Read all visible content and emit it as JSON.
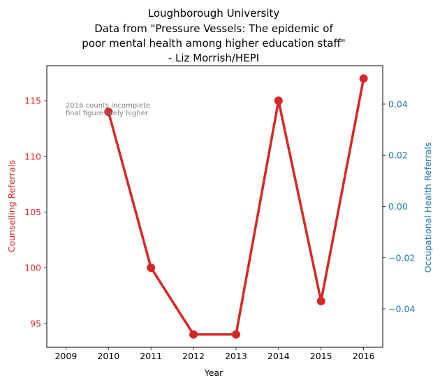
{
  "chart_data": {
    "type": "line",
    "title_lines": [
      "Loughborough University",
      "Data from \"Pressure Vessels: The epidemic of",
      "poor mental health among higher education staff\"",
      "- Liz Morrish/HEPI"
    ],
    "xlabel": "Year",
    "ylabel_left": "Counselling Referrals",
    "ylabel_right": "Occupational Health Referrals",
    "x": [
      2010,
      2011,
      2012,
      2013,
      2014,
      2015,
      2016
    ],
    "series": [
      {
        "values": [
          114,
          100,
          94,
          94,
          115,
          97,
          117
        ],
        "color": "#d62728",
        "axis": "left"
      }
    ],
    "x_ticks": [
      "2009",
      "2010",
      "2011",
      "2012",
      "2013",
      "2014",
      "2015",
      "2016"
    ],
    "x_tick_values": [
      2009,
      2010,
      2011,
      2012,
      2013,
      2014,
      2015,
      2016
    ],
    "xlim": [
      2008.55,
      2016.45
    ],
    "y_left_ticks": [
      "95",
      "100",
      "105",
      "110",
      "115"
    ],
    "y_left_tick_values": [
      95,
      100,
      105,
      110,
      115
    ],
    "ylim_left": [
      92.85,
      118.15
    ],
    "y_right_ticks": [
      "−0.04",
      "−0.02",
      "0.00",
      "0.02",
      "0.04"
    ],
    "y_right_tick_values": [
      -0.04,
      -0.02,
      0.0,
      0.02,
      0.04
    ],
    "ylim_right": [
      -0.055,
      0.055
    ],
    "left_axis_color": "#d62728",
    "right_axis_color": "#1f77b4",
    "annotation": [
      "2016 counts incomplete",
      "final figure likely higher"
    ],
    "grid": false
  }
}
